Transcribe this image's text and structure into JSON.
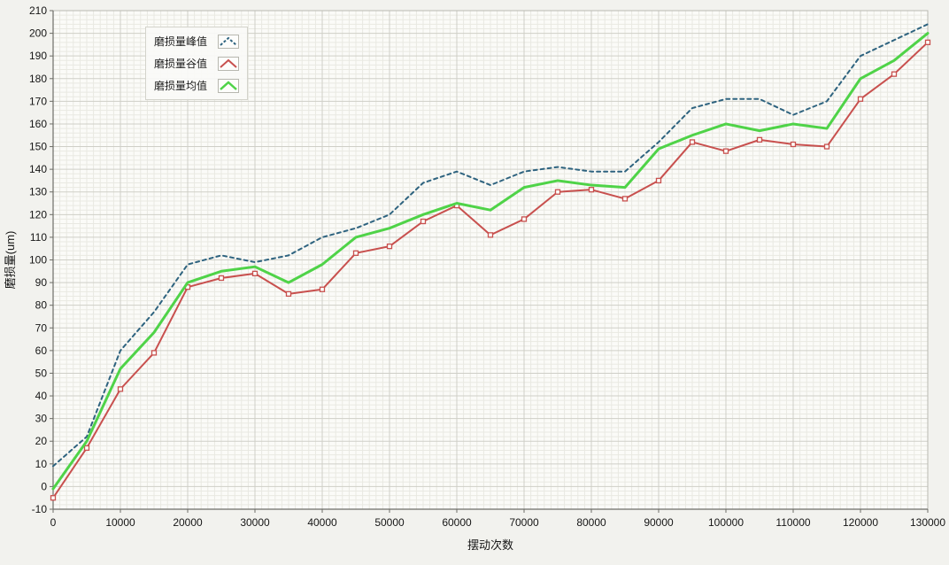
{
  "figure": {
    "background": "#f2f2ee",
    "plot_background": "#fbfbf8",
    "grid_minor_color": "#e9e9e2",
    "grid_major_color": "#cfcfc7",
    "border_color": "#b9b9b1",
    "axis_color": "#6e6e68",
    "text_color": "#161616",
    "tick_font_size": 12,
    "title_font_size": 13
  },
  "chart_data": {
    "type": "line",
    "title": "",
    "xlabel": "摆动次数",
    "ylabel": "磨损量(um)",
    "xlim": [
      0,
      130000
    ],
    "ylim": [
      -10,
      210
    ],
    "x_tick_step": 10000,
    "y_tick_step": 10,
    "x_minor_step": 1000,
    "y_minor_step": 2,
    "grid": true,
    "legend_position": "top-left",
    "x": [
      0,
      5000,
      10000,
      15000,
      20000,
      25000,
      30000,
      35000,
      40000,
      45000,
      50000,
      55000,
      60000,
      65000,
      70000,
      75000,
      80000,
      85000,
      90000,
      95000,
      100000,
      105000,
      110000,
      115000,
      120000,
      125000,
      130000
    ],
    "series": [
      {
        "name": "磨损量峰值",
        "color": "#2e637f",
        "style": "dashed",
        "width": 2,
        "marker": "none",
        "values": [
          9,
          22,
          60,
          77,
          98,
          102,
          99,
          102,
          110,
          114,
          120,
          134,
          139,
          133,
          139,
          141,
          139,
          139,
          152,
          167,
          171,
          171,
          164,
          170,
          190,
          197,
          204
        ]
      },
      {
        "name": "磨损量谷值",
        "color": "#c8504e",
        "style": "solid",
        "width": 2,
        "marker": "square",
        "values": [
          -5,
          17,
          43,
          59,
          88,
          92,
          94,
          85,
          87,
          103,
          106,
          117,
          124,
          111,
          118,
          130,
          131,
          127,
          135,
          152,
          148,
          153,
          151,
          150,
          171,
          182,
          196
        ]
      },
      {
        "name": "磨损量均值",
        "color": "#4fd348",
        "style": "solid",
        "width": 3,
        "marker": "none",
        "values": [
          -1,
          20,
          52,
          68,
          90,
          95,
          97,
          90,
          98,
          110,
          114,
          120,
          125,
          122,
          132,
          135,
          133,
          132,
          149,
          155,
          160,
          157,
          160,
          158,
          180,
          188,
          200
        ]
      }
    ]
  }
}
